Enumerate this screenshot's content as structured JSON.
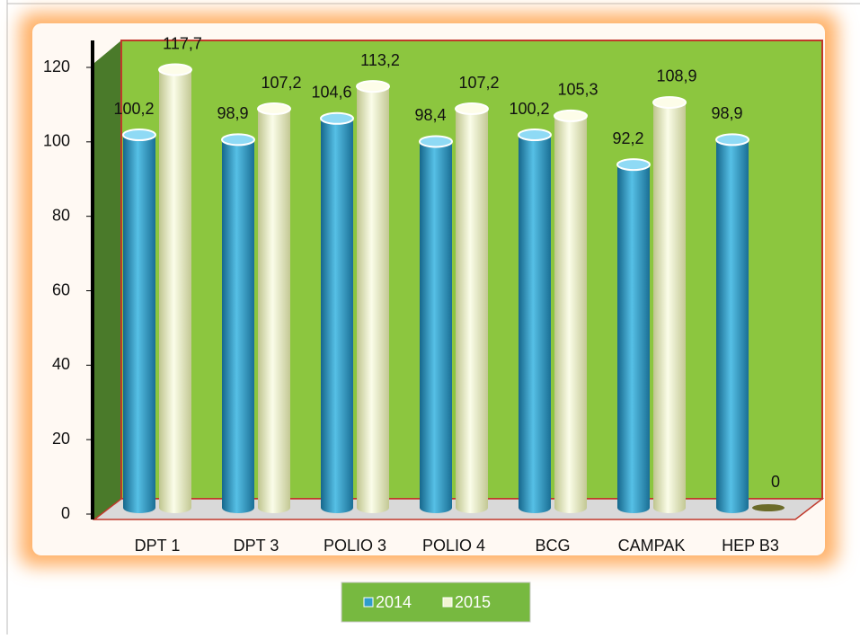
{
  "chart_data": {
    "type": "bar",
    "categories": [
      "DPT 1",
      "DPT 3",
      "POLIO 3",
      "POLIO 4",
      "BCG",
      "CAMPAK",
      "HEP B3"
    ],
    "series": [
      {
        "name": "2014",
        "color": "#2f9ccc",
        "values": [
          100.2,
          98.9,
          104.6,
          98.4,
          100.2,
          92.2,
          98.9
        ],
        "value_labels": [
          "100,2",
          "98,9",
          "104,6",
          "98,4",
          "100,2",
          "92,2",
          "98,9"
        ]
      },
      {
        "name": "2015",
        "color": "#f1f4d2",
        "values": [
          117.7,
          107.2,
          113.2,
          107.2,
          105.3,
          108.9,
          0
        ],
        "value_labels": [
          "117,7",
          "107,2",
          "113,2",
          "107,2",
          "105,3",
          "108,9",
          "0"
        ]
      }
    ],
    "ylim": [
      0,
      120
    ],
    "yticks": [
      0,
      20,
      40,
      60,
      80,
      100,
      120
    ],
    "legend": "bottom"
  }
}
